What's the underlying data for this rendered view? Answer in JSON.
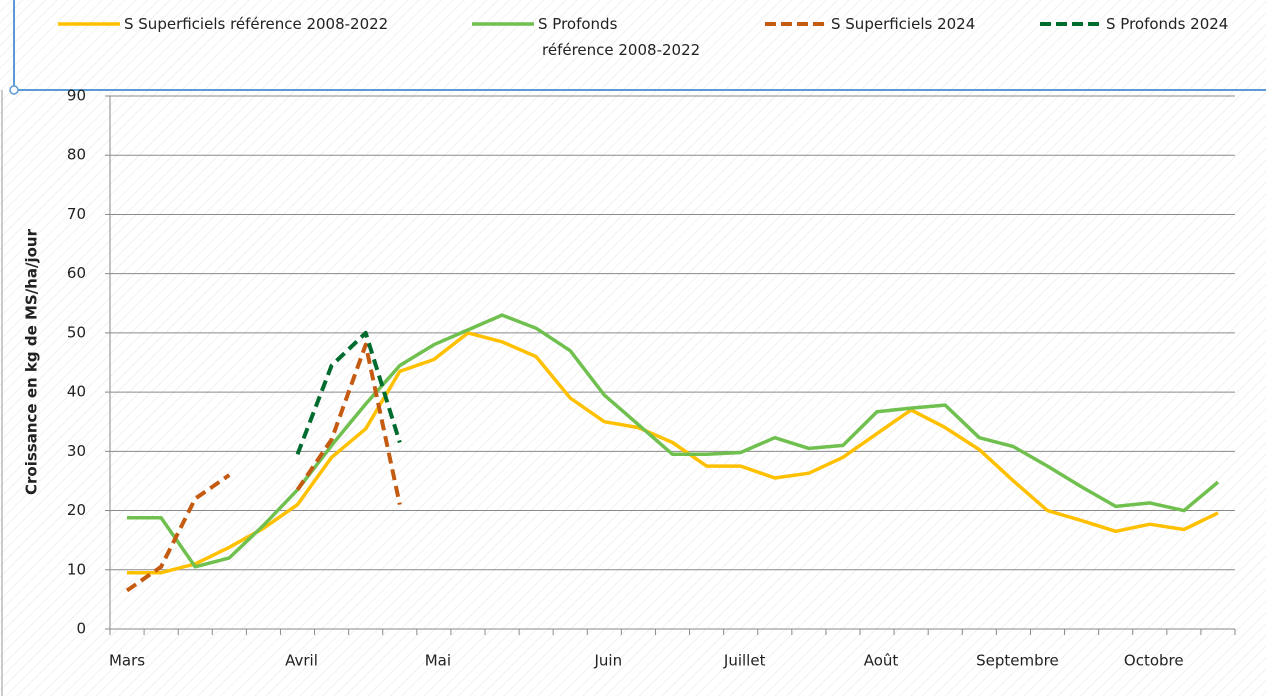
{
  "chart_data": {
    "type": "line",
    "y_label": "Croissance en kg de MS/ha/jour",
    "categories": [
      "Mars",
      null,
      null,
      null,
      null,
      "Avril",
      null,
      null,
      null,
      "Mai",
      null,
      null,
      null,
      null,
      "Juin",
      null,
      null,
      null,
      "Juillet",
      null,
      null,
      null,
      "Août",
      null,
      null,
      null,
      "Septembre",
      null,
      null,
      null,
      "Octobre",
      null,
      null
    ],
    "series": [
      {
        "name": "S Superficiels référence 2008-2022",
        "color": "#ffc000",
        "dashed": false,
        "values": [
          9.5,
          9.5,
          11,
          13.8,
          17,
          21,
          29,
          33.8,
          43.5,
          45.5,
          50,
          48.5,
          46,
          39,
          35,
          34,
          31.5,
          27.5,
          27.5,
          25.5,
          26.3,
          29,
          33,
          37,
          34,
          30.3,
          25,
          20,
          18.3,
          16.5,
          17.7,
          16.8,
          19.6
        ]
      },
      {
        "name": "S Profonds\nréférence 2008-2022",
        "color": "#70c04f",
        "dashed": false,
        "values": [
          18.8,
          18.8,
          10.5,
          12,
          17.5,
          23.5,
          31,
          38,
          44.5,
          48,
          50.5,
          53,
          50.8,
          47,
          39.5,
          34.5,
          29.5,
          29.5,
          29.8,
          32.3,
          30.5,
          31,
          36.7,
          37.3,
          37.8,
          32.3,
          30.8,
          27.5,
          24,
          20.7,
          21.3,
          20,
          24.8
        ]
      },
      {
        "name": "S Superficiels 2024",
        "color": "#c55a11",
        "dashed": true,
        "values": [
          6.5,
          10.5,
          22,
          26,
          null,
          23.5,
          32,
          48,
          21,
          null,
          null,
          null,
          null,
          null,
          null,
          null,
          null,
          null,
          null,
          null,
          null,
          null,
          null,
          null,
          null,
          null,
          null,
          null,
          null,
          null,
          null,
          null,
          null
        ]
      },
      {
        "name": "S Profonds 2024",
        "color": "#006b2e",
        "dashed": true,
        "values": [
          null,
          null,
          null,
          null,
          null,
          29.5,
          44.5,
          50,
          31.5,
          null,
          null,
          null,
          null,
          null,
          null,
          null,
          null,
          null,
          null,
          null,
          null,
          null,
          null,
          null,
          null,
          null,
          null,
          null,
          null,
          null,
          null,
          null,
          null
        ]
      }
    ],
    "ylim": [
      0,
      90
    ],
    "yticks": [
      0,
      10,
      20,
      30,
      40,
      50,
      60,
      70,
      80,
      90
    ],
    "grid": true
  }
}
